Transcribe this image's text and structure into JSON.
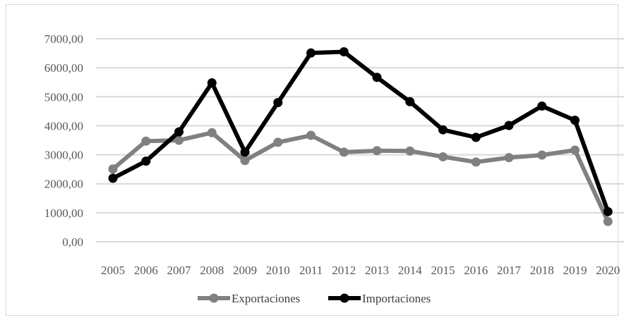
{
  "chart_data": {
    "type": "line",
    "title": "",
    "xlabel": "",
    "ylabel": "",
    "categories": [
      "2005",
      "2006",
      "2007",
      "2008",
      "2009",
      "2010",
      "2011",
      "2012",
      "2013",
      "2014",
      "2015",
      "2016",
      "2017",
      "2018",
      "2019",
      "2020"
    ],
    "series": [
      {
        "name": "Exportaciones",
        "color": "#808080",
        "values": [
          2510,
          3470,
          3500,
          3760,
          2800,
          3430,
          3670,
          3090,
          3140,
          3130,
          2930,
          2750,
          2900,
          2990,
          3160,
          700
        ]
      },
      {
        "name": "Importaciones",
        "color": "#000000",
        "values": [
          2190,
          2780,
          3790,
          5480,
          3090,
          4800,
          6510,
          6550,
          5670,
          4830,
          3860,
          3600,
          4010,
          4680,
          4190,
          1040
        ]
      }
    ],
    "ylim": [
      0,
      7000
    ],
    "y_ticks": [
      "0,00",
      "1000,00",
      "2000,00",
      "3000,00",
      "4000,00",
      "5000,00",
      "6000,00",
      "7000,00"
    ],
    "grid": true,
    "legend_position": "bottom"
  }
}
